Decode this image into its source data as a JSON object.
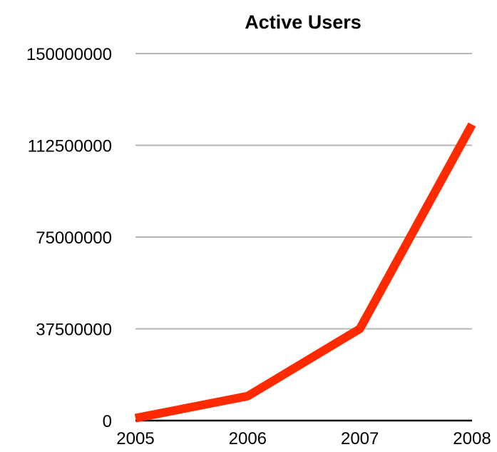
{
  "chart_data": {
    "type": "line",
    "title": "Active Users",
    "xlabel": "",
    "ylabel": "",
    "categories": [
      "2005",
      "2006",
      "2007",
      "2008"
    ],
    "series": [
      {
        "values": [
          1000000,
          10000000,
          37500000,
          121000000
        ],
        "color": "#ff2a00"
      }
    ],
    "ylim": [
      0,
      150000000
    ],
    "yticks": [
      0,
      37500000,
      75000000,
      112500000,
      150000000
    ],
    "ytick_labels": [
      "0",
      "37500000",
      "75000000",
      "112500000",
      "150000000"
    ],
    "grid": true,
    "legend": "none"
  }
}
